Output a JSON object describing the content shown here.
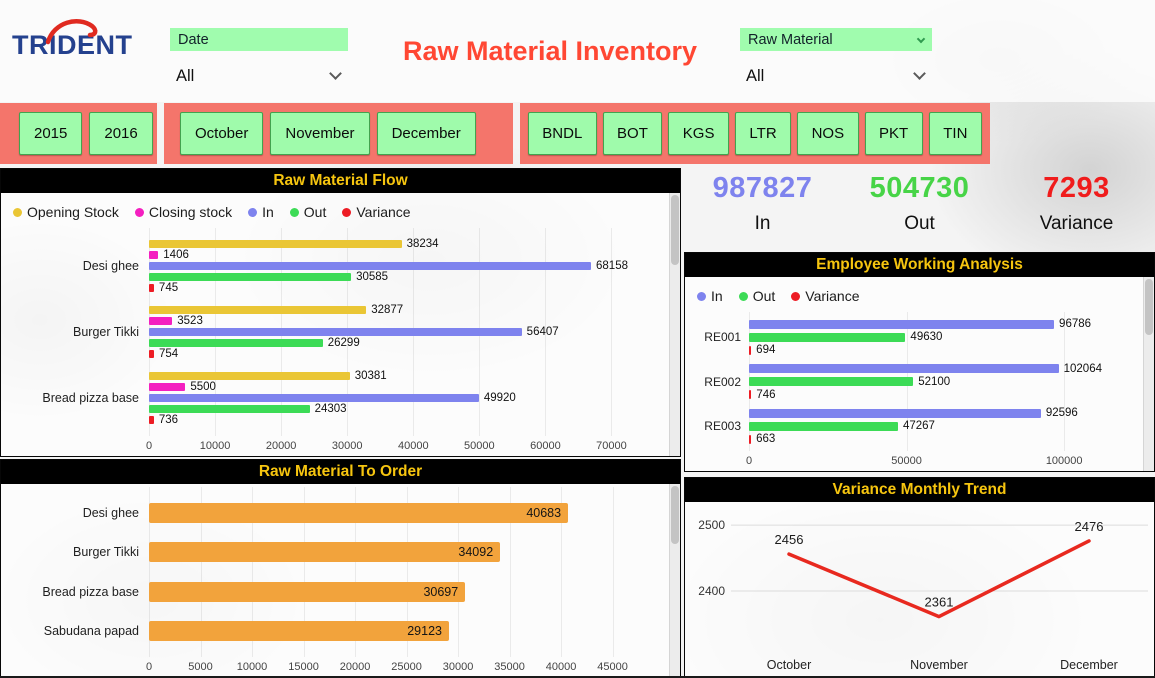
{
  "header": {
    "logo_text": "TRIDENT",
    "title": "Raw Material Inventory",
    "date_slicer": {
      "label": "Date",
      "value": "All"
    },
    "material_slicer": {
      "label": "Raw Material",
      "value": "All"
    }
  },
  "filters": {
    "years": [
      "2015",
      "2016"
    ],
    "months": [
      "October",
      "November",
      "December"
    ],
    "units": [
      "BNDL",
      "BOT",
      "KGS",
      "LTR",
      "NOS",
      "PKT",
      "TIN"
    ]
  },
  "kpis": [
    {
      "value": "987827",
      "label": "In",
      "color": "#7e83ee"
    },
    {
      "value": "504730",
      "label": "Out",
      "color": "#47d447"
    },
    {
      "value": "7293",
      "label": "Variance",
      "color": "#f01c1c"
    }
  ],
  "colors": {
    "filter_bar": "#f4756b",
    "slicer_green": "#a0fcae",
    "panel_header_text": "#f6c50f",
    "title_red": "#ff4733"
  },
  "chart_data": [
    {
      "key": "flow",
      "type": "bar",
      "orientation": "horizontal",
      "title": "Raw Material Flow",
      "categories": [
        "Desi ghee",
        "Burger Tikki",
        "Bread pizza base"
      ],
      "series": [
        {
          "name": "Opening Stock",
          "color": "#eac635",
          "values": [
            38234,
            32877,
            30381
          ]
        },
        {
          "name": "Closing stock",
          "color": "#f41fc0",
          "values": [
            1406,
            3523,
            5500
          ]
        },
        {
          "name": "In",
          "color": "#7e83ee",
          "values": [
            68158,
            56407,
            49920
          ]
        },
        {
          "name": "Out",
          "color": "#3cdb56",
          "values": [
            30585,
            26299,
            24303
          ]
        },
        {
          "name": "Variance",
          "color": "#ed1c24",
          "values": [
            745,
            754,
            736
          ]
        }
      ],
      "xticks": [
        0,
        10000,
        20000,
        30000,
        40000,
        50000,
        60000,
        70000
      ],
      "xlim": [
        0,
        72500
      ],
      "legend_position": "top-left",
      "grid": true
    },
    {
      "key": "to_order",
      "type": "bar",
      "orientation": "horizontal",
      "title": "Raw Material To Order",
      "categories": [
        "Desi ghee",
        "Burger Tikki",
        "Bread pizza base",
        "Sabudana papad"
      ],
      "series": [
        {
          "name": "To Order",
          "color": "#f2a33c",
          "values": [
            40683,
            34092,
            30697,
            29123
          ]
        }
      ],
      "xticks": [
        0,
        5000,
        10000,
        15000,
        20000,
        25000,
        30000,
        35000,
        40000,
        45000
      ],
      "xlim": [
        0,
        46500
      ],
      "labels_inside": true,
      "grid": true
    },
    {
      "key": "employee",
      "type": "bar",
      "orientation": "horizontal",
      "title": "Employee Working Analysis",
      "categories": [
        "RE001",
        "RE002",
        "RE003"
      ],
      "series": [
        {
          "name": "In",
          "color": "#7e83ee",
          "values": [
            96786,
            102064,
            92596
          ]
        },
        {
          "name": "Out",
          "color": "#3cdb56",
          "values": [
            49630,
            52100,
            47267
          ]
        },
        {
          "name": "Variance",
          "color": "#ed1c24",
          "values": [
            694,
            746,
            663
          ]
        }
      ],
      "xticks": [
        0,
        50000,
        100000
      ],
      "xlim": [
        0,
        112000
      ],
      "legend_position": "top-left",
      "grid": true
    },
    {
      "key": "variance_trend",
      "type": "line",
      "title": "Variance Monthly Trend",
      "categories": [
        "October",
        "November",
        "December"
      ],
      "values": [
        2456,
        2361,
        2476
      ],
      "line_color": "#e8291f",
      "yticks": [
        2400,
        2500
      ],
      "ylim": [
        2330,
        2520
      ],
      "grid": true
    }
  ]
}
